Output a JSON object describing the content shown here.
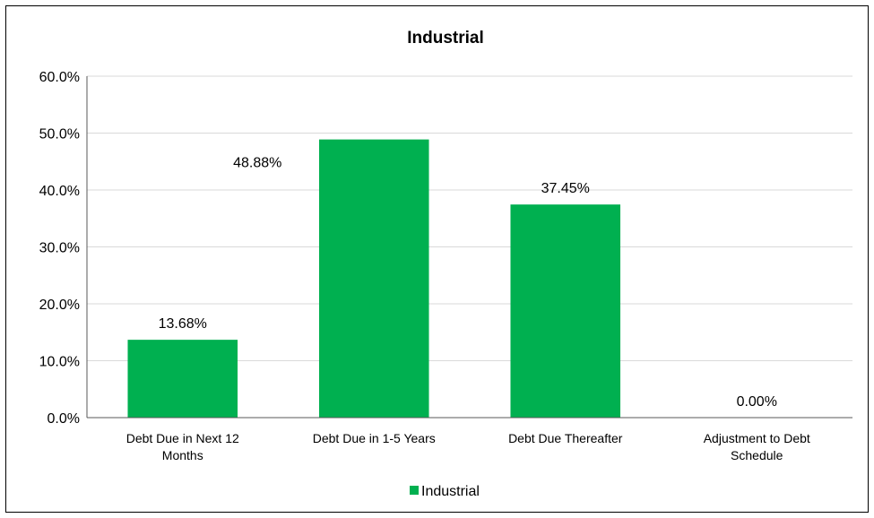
{
  "chart_data": {
    "type": "bar",
    "title": "Industrial",
    "categories": [
      [
        "Debt Due in Next 12",
        "Months"
      ],
      [
        "Debt Due in 1-5 Years"
      ],
      [
        "Debt Due Thereafter"
      ],
      [
        "Adjustment to Debt",
        "Schedule"
      ]
    ],
    "series": [
      {
        "name": "Industrial",
        "color": "#00B050",
        "values": [
          13.68,
          48.88,
          37.45,
          0.0
        ],
        "labels": [
          "13.68%",
          "48.88%",
          "37.45%",
          "0.00%"
        ]
      }
    ],
    "ylim": [
      0,
      60
    ],
    "yticks": [
      0,
      10,
      20,
      30,
      40,
      50,
      60
    ],
    "ytick_labels": [
      "0.0%",
      "10.0%",
      "20.0%",
      "30.0%",
      "40.0%",
      "50.0%",
      "60.0%"
    ],
    "grid": true,
    "gridline_color": "#D9D9D9",
    "legend": "bottom"
  }
}
